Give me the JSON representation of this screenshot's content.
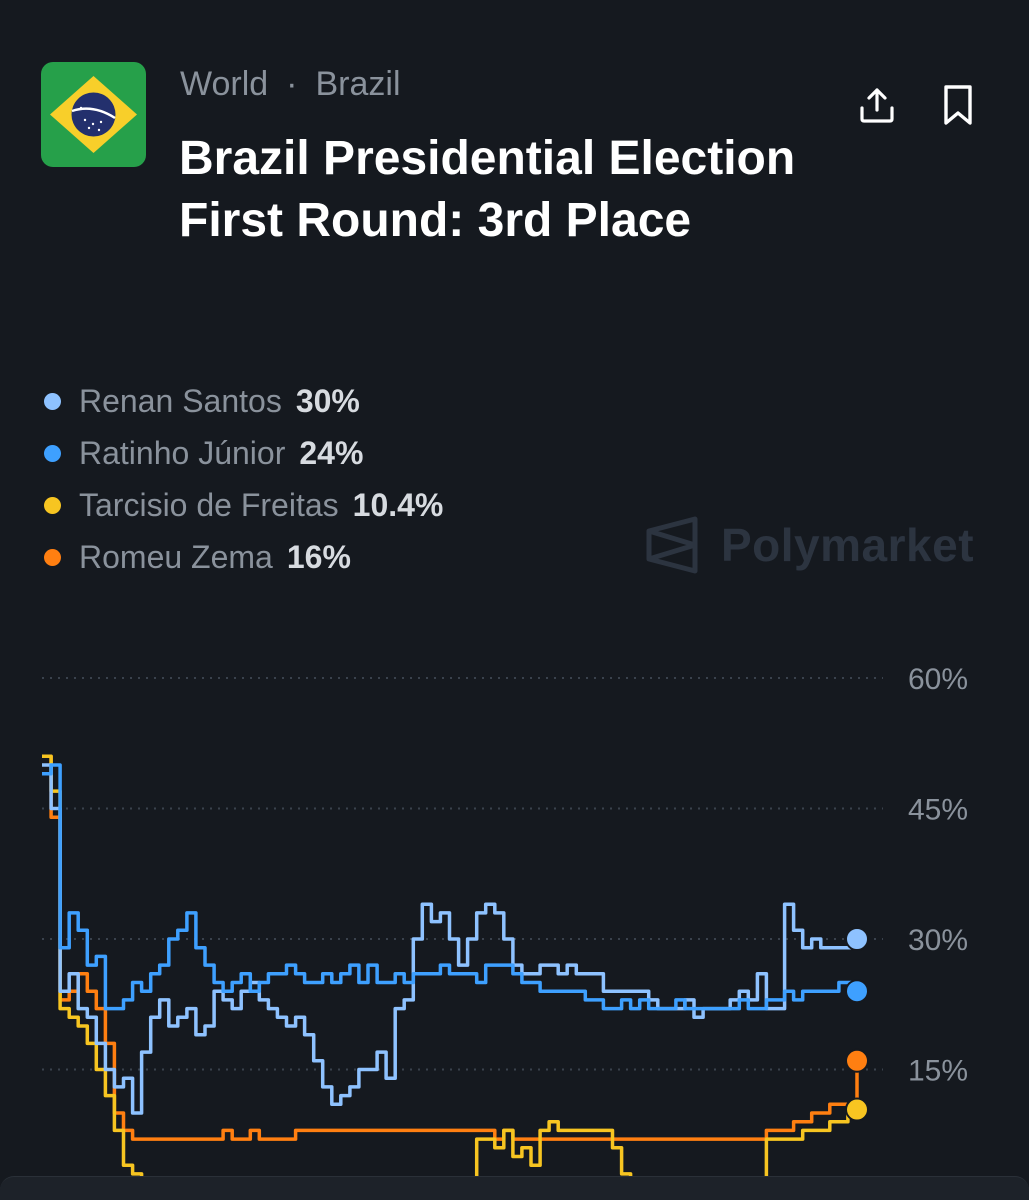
{
  "breadcrumb": {
    "parent": "World",
    "separator": "·",
    "child": "Brazil"
  },
  "market": {
    "title": "Brazil Presidential Election First Round: 3rd Place"
  },
  "watermark": {
    "text": "Polymarket"
  },
  "icons": {
    "flag": "brazil-flag-icon",
    "share": "share-icon",
    "bookmark": "bookmark-icon",
    "logo": "polymarket-logo-icon"
  },
  "colors": {
    "background": "#15191f",
    "renan": "#8ec2ff",
    "ratinho": "#3ea0ff",
    "tarcisio": "#f7c521",
    "romeu": "#ff7f11"
  },
  "chart_data": {
    "type": "line",
    "yticks": [
      "60%",
      "45%",
      "30%",
      "15%"
    ],
    "ytick_values": [
      60,
      45,
      30,
      15
    ],
    "ylim": [
      0,
      60
    ],
    "grid": "dotted horizontal",
    "legend_position": "top-left",
    "series": [
      {
        "name": "Renan Santos",
        "label": "30%",
        "color": "#8ec2ff",
        "values": [
          50,
          45,
          24,
          26,
          22,
          21,
          18,
          15,
          13,
          14,
          10,
          17,
          21,
          23,
          20,
          21,
          22,
          19,
          20,
          24,
          23,
          22,
          24,
          25,
          23,
          22,
          21,
          20,
          21,
          19,
          16,
          13,
          11,
          12,
          13,
          15,
          15,
          17,
          14,
          22,
          23,
          30,
          34,
          32,
          33,
          30,
          27,
          30,
          33,
          34,
          33,
          30,
          27,
          26,
          26,
          27,
          27,
          26,
          27,
          26,
          26,
          26,
          24,
          24,
          24,
          24,
          24,
          23,
          22,
          22,
          22,
          23,
          21,
          22,
          22,
          22,
          23,
          24,
          23,
          26,
          22,
          22,
          34,
          31,
          29,
          30,
          29,
          29,
          29,
          29,
          30
        ]
      },
      {
        "name": "Ratinho Júnior",
        "label": "24%",
        "color": "#3ea0ff",
        "values": [
          49,
          50,
          29,
          33,
          31,
          27,
          28,
          22,
          22,
          23,
          25,
          24,
          26,
          27,
          30,
          31,
          33,
          29,
          27,
          25,
          24,
          25,
          26,
          24,
          25,
          26,
          26,
          27,
          26,
          25,
          25,
          26,
          25,
          26,
          27,
          25,
          27,
          25,
          25,
          26,
          25,
          26,
          26,
          26,
          27,
          26,
          26,
          26,
          25,
          27,
          27,
          27,
          26,
          25,
          25,
          24,
          24,
          24,
          24,
          24,
          23,
          23,
          22,
          22,
          23,
          22,
          23,
          22,
          22,
          22,
          23,
          22,
          22,
          22,
          22,
          22,
          22,
          23,
          22,
          22,
          23,
          23,
          24,
          23,
          24,
          24,
          24,
          24,
          25,
          25,
          24
        ]
      },
      {
        "name": "Tarcisio de Freitas",
        "label": "10.4%",
        "color": "#f7c521",
        "values": [
          51,
          47,
          22,
          21,
          20,
          18,
          15,
          12,
          8,
          4,
          3,
          2,
          2,
          2,
          2,
          2,
          2,
          2,
          2,
          2,
          2,
          2,
          2,
          2,
          2,
          2,
          2,
          1,
          1,
          1,
          1,
          0.5,
          0.5,
          0.3,
          0.3,
          0,
          0,
          0,
          0,
          0,
          0,
          0,
          0,
          0,
          0,
          0,
          0,
          0,
          7,
          7,
          6,
          8,
          5,
          6,
          4,
          8,
          9,
          8,
          8,
          8,
          8,
          8,
          8,
          6,
          3,
          0,
          0,
          0,
          0,
          0,
          0,
          0,
          0,
          0,
          0,
          0,
          0,
          0,
          0,
          0,
          7,
          7,
          7,
          7,
          8,
          8,
          8,
          9,
          9,
          10,
          10.4
        ]
      },
      {
        "name": "Romeu Zema",
        "label": "16%",
        "color": "#ff7f11",
        "values": [
          51,
          44,
          23,
          24,
          26,
          24,
          22,
          18,
          10,
          8,
          7,
          7,
          7,
          7,
          7,
          7,
          7,
          7,
          7,
          7,
          8,
          7,
          7,
          8,
          7,
          7,
          7,
          7,
          8,
          8,
          8,
          8,
          8,
          8,
          8,
          8,
          8,
          8,
          8,
          8,
          8,
          8,
          8,
          8,
          8,
          8,
          8,
          8,
          8,
          8,
          7,
          8,
          7,
          7,
          7,
          7,
          7,
          7,
          7,
          7,
          7,
          7,
          7,
          7,
          7,
          7,
          7,
          7,
          7,
          7,
          7,
          7,
          7,
          7,
          7,
          7,
          7,
          7,
          7,
          7,
          8,
          8,
          8,
          9,
          9,
          10,
          10,
          11,
          11,
          11,
          16
        ]
      }
    ]
  }
}
